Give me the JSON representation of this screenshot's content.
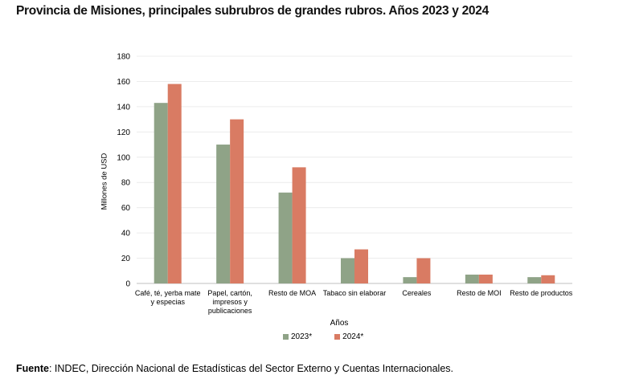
{
  "title": "Provincia de Misiones, principales subrubros de grandes rubros. Años 2023 y 2024",
  "source": {
    "label": "Fuente",
    "text": ": INDEC, Dirección Nacional de Estadísticas del Sector Externo y Cuentas Internacionales."
  },
  "chart_data": {
    "type": "bar",
    "xlabel": "Años",
    "ylabel": "Millones de USD",
    "ylim": [
      0,
      180
    ],
    "yticks": [
      "0",
      "20",
      "40",
      "60",
      "80",
      "100",
      "120",
      "140",
      "160",
      "180"
    ],
    "grid": true,
    "legend_position": "bottom",
    "categories": [
      "Café, té, yerba mate y especias",
      "Papel, cartón, impresos y publicaciones",
      "Resto de MOA",
      "Tabaco sin elaborar",
      "Cereales",
      "Resto de MOI",
      "Resto de productos"
    ],
    "series": [
      {
        "name": "2023*",
        "color": "#8fa387",
        "values": [
          143,
          110,
          72,
          20,
          5,
          7,
          5
        ]
      },
      {
        "name": "2024*",
        "color": "#d97b63",
        "values": [
          158,
          130,
          92,
          27,
          20,
          7,
          6.5
        ]
      }
    ]
  }
}
